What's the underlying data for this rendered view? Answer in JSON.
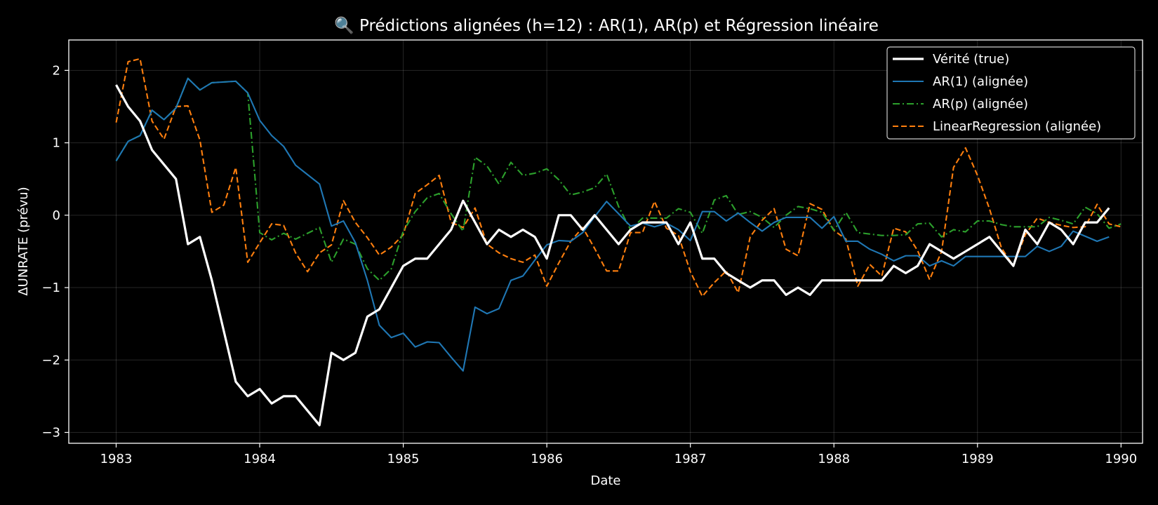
{
  "chart_data": {
    "type": "line",
    "title": "🔍 Prédictions alignées (h=12) : AR(1), AR(p) et Régression linéaire",
    "xlabel": "Date",
    "ylabel": "ΔUNRATE (prévu)",
    "x_ticks": [
      "1983",
      "1984",
      "1985",
      "1986",
      "1987",
      "1988",
      "1989",
      "1990"
    ],
    "y_ticks": [
      "2",
      "1",
      "0",
      "−1",
      "−2",
      "−3"
    ],
    "xlim": [
      1982.67,
      1990.15
    ],
    "ylim": [
      -3.15,
      2.42
    ],
    "grid": true,
    "legend_position": "top-right",
    "background": "#000000",
    "x_start": "1983-01",
    "x_end": "1989-11",
    "series": [
      {
        "name": "Vérité (true)",
        "color": "#ffffff",
        "dash": "solid",
        "values": [
          1.8,
          1.5,
          1.3,
          0.9,
          0.7,
          0.5,
          -0.4,
          -0.3,
          -0.9,
          -1.6,
          -2.3,
          -2.5,
          -2.4,
          -2.6,
          -2.5,
          -2.5,
          -2.7,
          -2.9,
          -1.9,
          -2.0,
          -1.9,
          -1.4,
          -1.3,
          -1.0,
          -0.7,
          -0.6,
          -0.6,
          -0.4,
          -0.2,
          0.2,
          -0.1,
          -0.4,
          -0.2,
          -0.3,
          -0.2,
          -0.3,
          -0.6,
          0.0,
          0.0,
          -0.2,
          0.0,
          -0.2,
          -0.4,
          -0.2,
          -0.1,
          -0.1,
          -0.1,
          -0.4,
          -0.1,
          -0.6,
          -0.6,
          -0.8,
          -0.9,
          -1.0,
          -0.9,
          -0.9,
          -1.1,
          -1.0,
          -1.1,
          -0.9,
          -0.9,
          -0.9,
          -0.9,
          -0.9,
          -0.9,
          -0.7,
          -0.8,
          -0.7,
          -0.4,
          -0.5,
          -0.6,
          -0.5,
          -0.4,
          -0.3,
          -0.5,
          -0.7,
          -0.2,
          -0.4,
          -0.1,
          -0.2,
          -0.4,
          -0.1,
          -0.1,
          0.1
        ]
      },
      {
        "name": "AR(1) (alignée)",
        "color": "#1f77b4",
        "dash": "solid",
        "values": [
          0.75,
          1.02,
          1.1,
          1.45,
          1.32,
          1.48,
          1.89,
          1.73,
          1.83,
          1.84,
          1.85,
          1.69,
          1.31,
          1.1,
          0.95,
          0.69,
          0.56,
          0.43,
          -0.15,
          -0.08,
          -0.38,
          -0.9,
          -1.52,
          -1.69,
          -1.63,
          -1.82,
          -1.75,
          -1.76,
          -1.96,
          -2.15,
          -1.27,
          -1.36,
          -1.29,
          -0.9,
          -0.84,
          -0.62,
          -0.41,
          -0.35,
          -0.36,
          -0.24,
          -0.02,
          0.19,
          0.02,
          -0.15,
          -0.11,
          -0.16,
          -0.11,
          -0.2,
          -0.35,
          0.05,
          0.05,
          -0.08,
          0.03,
          -0.1,
          -0.22,
          -0.1,
          -0.03,
          -0.03,
          -0.03,
          -0.18,
          -0.02,
          -0.36,
          -0.36,
          -0.47,
          -0.54,
          -0.63,
          -0.56,
          -0.56,
          -0.7,
          -0.63,
          -0.7,
          -0.57,
          -0.57,
          -0.57,
          -0.57,
          -0.57,
          -0.57,
          -0.43,
          -0.5,
          -0.43,
          -0.22,
          -0.29,
          -0.36,
          -0.3
        ]
      },
      {
        "name": "AR(p) (alignée)",
        "color": "#2ca02c",
        "dash": "dashdot",
        "values": [
          0.75,
          1.02,
          1.1,
          1.45,
          1.32,
          1.48,
          1.89,
          1.73,
          1.83,
          1.84,
          1.85,
          1.69,
          -0.24,
          -0.34,
          -0.25,
          -0.33,
          -0.25,
          -0.17,
          -0.65,
          -0.33,
          -0.4,
          -0.74,
          -0.9,
          -0.74,
          -0.22,
          0.05,
          0.24,
          0.3,
          0.02,
          -0.22,
          0.8,
          0.68,
          0.43,
          0.73,
          0.55,
          0.58,
          0.64,
          0.49,
          0.28,
          0.32,
          0.38,
          0.57,
          0.12,
          -0.2,
          -0.04,
          -0.04,
          -0.04,
          0.09,
          0.04,
          -0.25,
          0.21,
          0.27,
          0.01,
          0.05,
          -0.03,
          -0.17,
          0.0,
          0.12,
          0.09,
          0.04,
          -0.21,
          0.04,
          -0.24,
          -0.26,
          -0.28,
          -0.28,
          -0.27,
          -0.12,
          -0.11,
          -0.3,
          -0.2,
          -0.23,
          -0.08,
          -0.08,
          -0.13,
          -0.16,
          -0.16,
          -0.16,
          -0.03,
          -0.07,
          -0.12,
          0.11,
          0.02,
          -0.18,
          -0.12
        ]
      },
      {
        "name": "LinearRegression (alignée)",
        "color": "#ff7f0e",
        "dash": "dashed",
        "values": [
          1.28,
          2.12,
          2.16,
          1.3,
          1.05,
          1.5,
          1.51,
          1.04,
          0.04,
          0.14,
          0.66,
          -0.65,
          -0.38,
          -0.12,
          -0.14,
          -0.52,
          -0.78,
          -0.52,
          -0.41,
          0.2,
          -0.1,
          -0.31,
          -0.55,
          -0.44,
          -0.27,
          0.3,
          0.42,
          0.55,
          -0.1,
          -0.17,
          0.1,
          -0.4,
          -0.52,
          -0.6,
          -0.65,
          -0.55,
          -0.98,
          -0.66,
          -0.36,
          -0.17,
          -0.46,
          -0.77,
          -0.77,
          -0.24,
          -0.24,
          0.19,
          -0.18,
          -0.28,
          -0.78,
          -1.12,
          -0.93,
          -0.77,
          -1.07,
          -0.3,
          -0.07,
          0.09,
          -0.47,
          -0.56,
          0.16,
          0.08,
          -0.21,
          -0.33,
          -0.98,
          -0.68,
          -0.84,
          -0.18,
          -0.23,
          -0.49,
          -0.89,
          -0.5,
          0.66,
          0.93,
          0.55,
          0.09,
          -0.45,
          -0.7,
          -0.27,
          -0.04,
          -0.1,
          -0.14,
          -0.17,
          -0.16,
          0.15,
          -0.12,
          -0.16
        ]
      }
    ]
  }
}
